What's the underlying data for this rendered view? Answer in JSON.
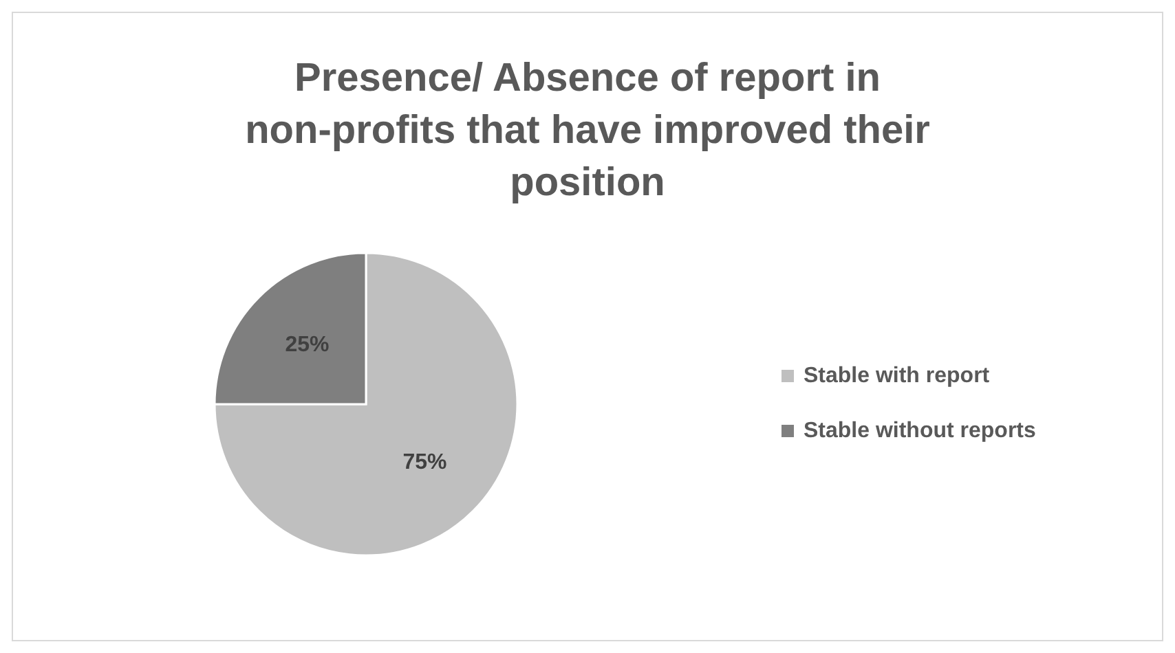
{
  "chart_data": {
    "type": "pie",
    "title": "Presence/ Absence of report in non-profits that have improved their position",
    "categories": [
      "Stable with report",
      "Stable without reports"
    ],
    "values": [
      75,
      25
    ],
    "colors": [
      "#bfbfbf",
      "#7f7f7f"
    ],
    "value_labels": [
      "75%",
      "25%"
    ],
    "legend": "right"
  }
}
